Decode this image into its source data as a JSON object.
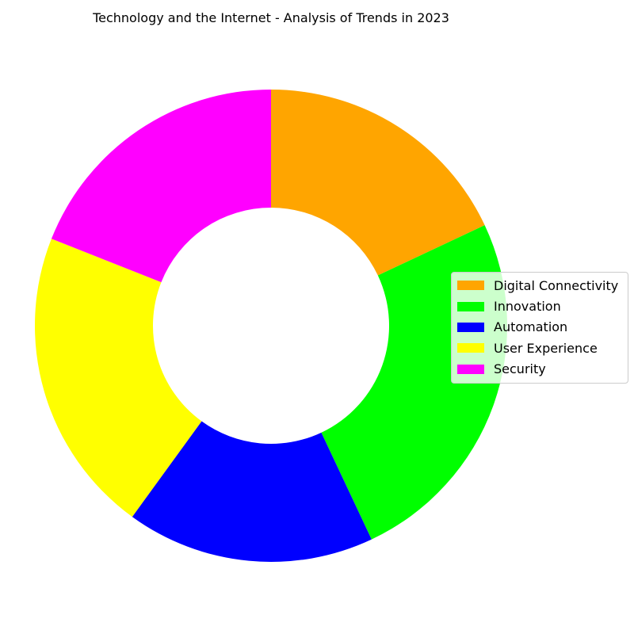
{
  "chart_data": {
    "type": "pie",
    "title": "Technology and the Internet - Analysis of Trends in 2023",
    "categories": [
      "Digital Connectivity",
      "Innovation",
      "Automation",
      "User Experience",
      "Security"
    ],
    "values": [
      18,
      25,
      17,
      21,
      19
    ],
    "colors": [
      "#FFA500",
      "#00FF00",
      "#0000FF",
      "#FFFF00",
      "#FF00FF"
    ],
    "start_angle_deg": 90,
    "direction": "clockwise",
    "donut": true,
    "legend_position": "center-right"
  }
}
